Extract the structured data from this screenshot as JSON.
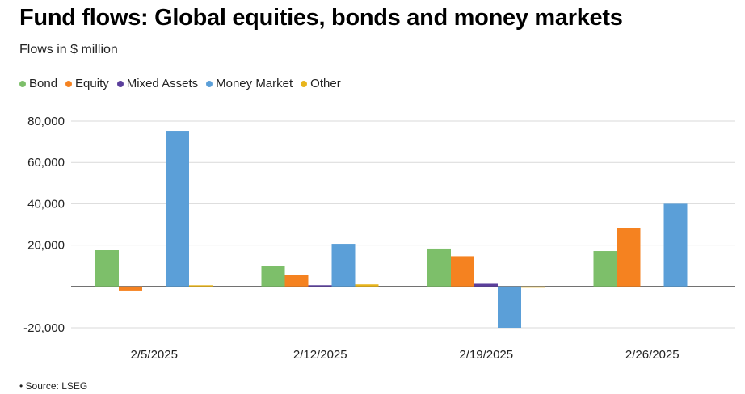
{
  "title": "Fund flows: Global equities, bonds and money markets",
  "subtitle": "Flows in $ million",
  "source": "• Source: LSEG",
  "chart_data": {
    "type": "bar",
    "categories": [
      "2/5/2025",
      "2/12/2025",
      "2/19/2025",
      "2/26/2025"
    ],
    "series": [
      {
        "name": "Bond",
        "color": "#7dbf6a",
        "values": [
          17500,
          9800,
          18300,
          17100
        ]
      },
      {
        "name": "Equity",
        "color": "#f58220",
        "values": [
          -2000,
          5500,
          14600,
          28400
        ]
      },
      {
        "name": "Mixed Assets",
        "color": "#5b3f9c",
        "values": [
          0,
          600,
          1300,
          0
        ]
      },
      {
        "name": "Money Market",
        "color": "#5b9fd8",
        "values": [
          75300,
          20600,
          -20000,
          40000
        ]
      },
      {
        "name": "Other",
        "color": "#e8b51c",
        "values": [
          500,
          1000,
          -300,
          0
        ]
      }
    ],
    "yticks": [
      "80,000",
      "60,000",
      "40,000",
      "20,000",
      "",
      "-20,000"
    ],
    "ylim": [
      -20000,
      80000
    ],
    "grid": true,
    "legend_position": "top-left"
  }
}
